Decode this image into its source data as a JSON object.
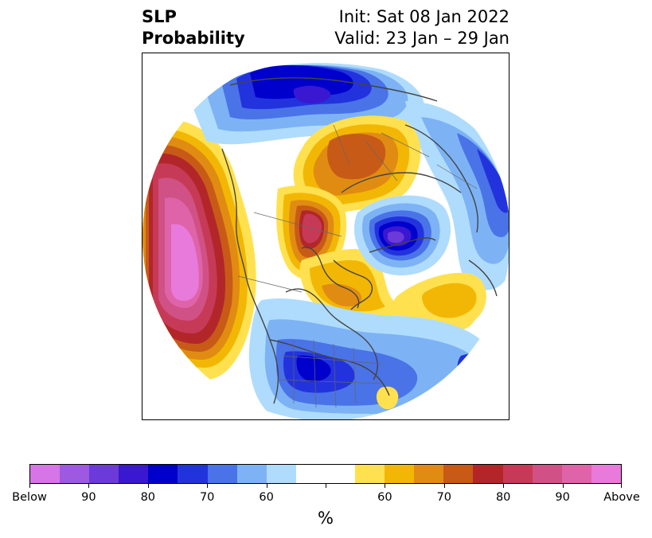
{
  "title": {
    "left_line1": "SLP",
    "left_line2": "Probability",
    "right_line1": "Init: Sat 08 Jan 2022",
    "right_line2": "Valid: 23 Jan – 29 Jan"
  },
  "colors": {
    "below": [
      "#d675e6",
      "#9d5ae0",
      "#6b3ad8",
      "#3a17d0",
      "#0000cc",
      "#2233dd",
      "#4a73e8",
      "#7db3f5",
      "#afdcfc"
    ],
    "neutral": "#ffffff",
    "above": [
      "#ffe14f",
      "#f2b705",
      "#e08c12",
      "#c85a17",
      "#b2262a",
      "#c63a57",
      "#d05185",
      "#df63a8",
      "#e87adb"
    ]
  },
  "colorbar": {
    "labels": [
      "Below",
      "90",
      "80",
      "70",
      "60",
      "60",
      "70",
      "80",
      "90",
      "Above"
    ],
    "unit": "%"
  },
  "map": {
    "projection": "north-polar-stereographic",
    "regions": [
      {
        "name": "north-pacific-above-anomaly",
        "category": "Above",
        "level": "max"
      },
      {
        "name": "arctic-above-anomaly",
        "category": "Above",
        "level": "80"
      },
      {
        "name": "eurasia-below-anomaly",
        "category": "Below",
        "level": "80"
      },
      {
        "name": "scandinavia-below-anomaly",
        "category": "Below",
        "level": "90"
      },
      {
        "name": "united-states-below-anomaly",
        "category": "Below",
        "level": "80"
      },
      {
        "name": "canada-above-anomaly",
        "category": "Above",
        "level": "70"
      },
      {
        "name": "atlantic-above-anomaly",
        "category": "Above",
        "level": "60"
      }
    ]
  }
}
